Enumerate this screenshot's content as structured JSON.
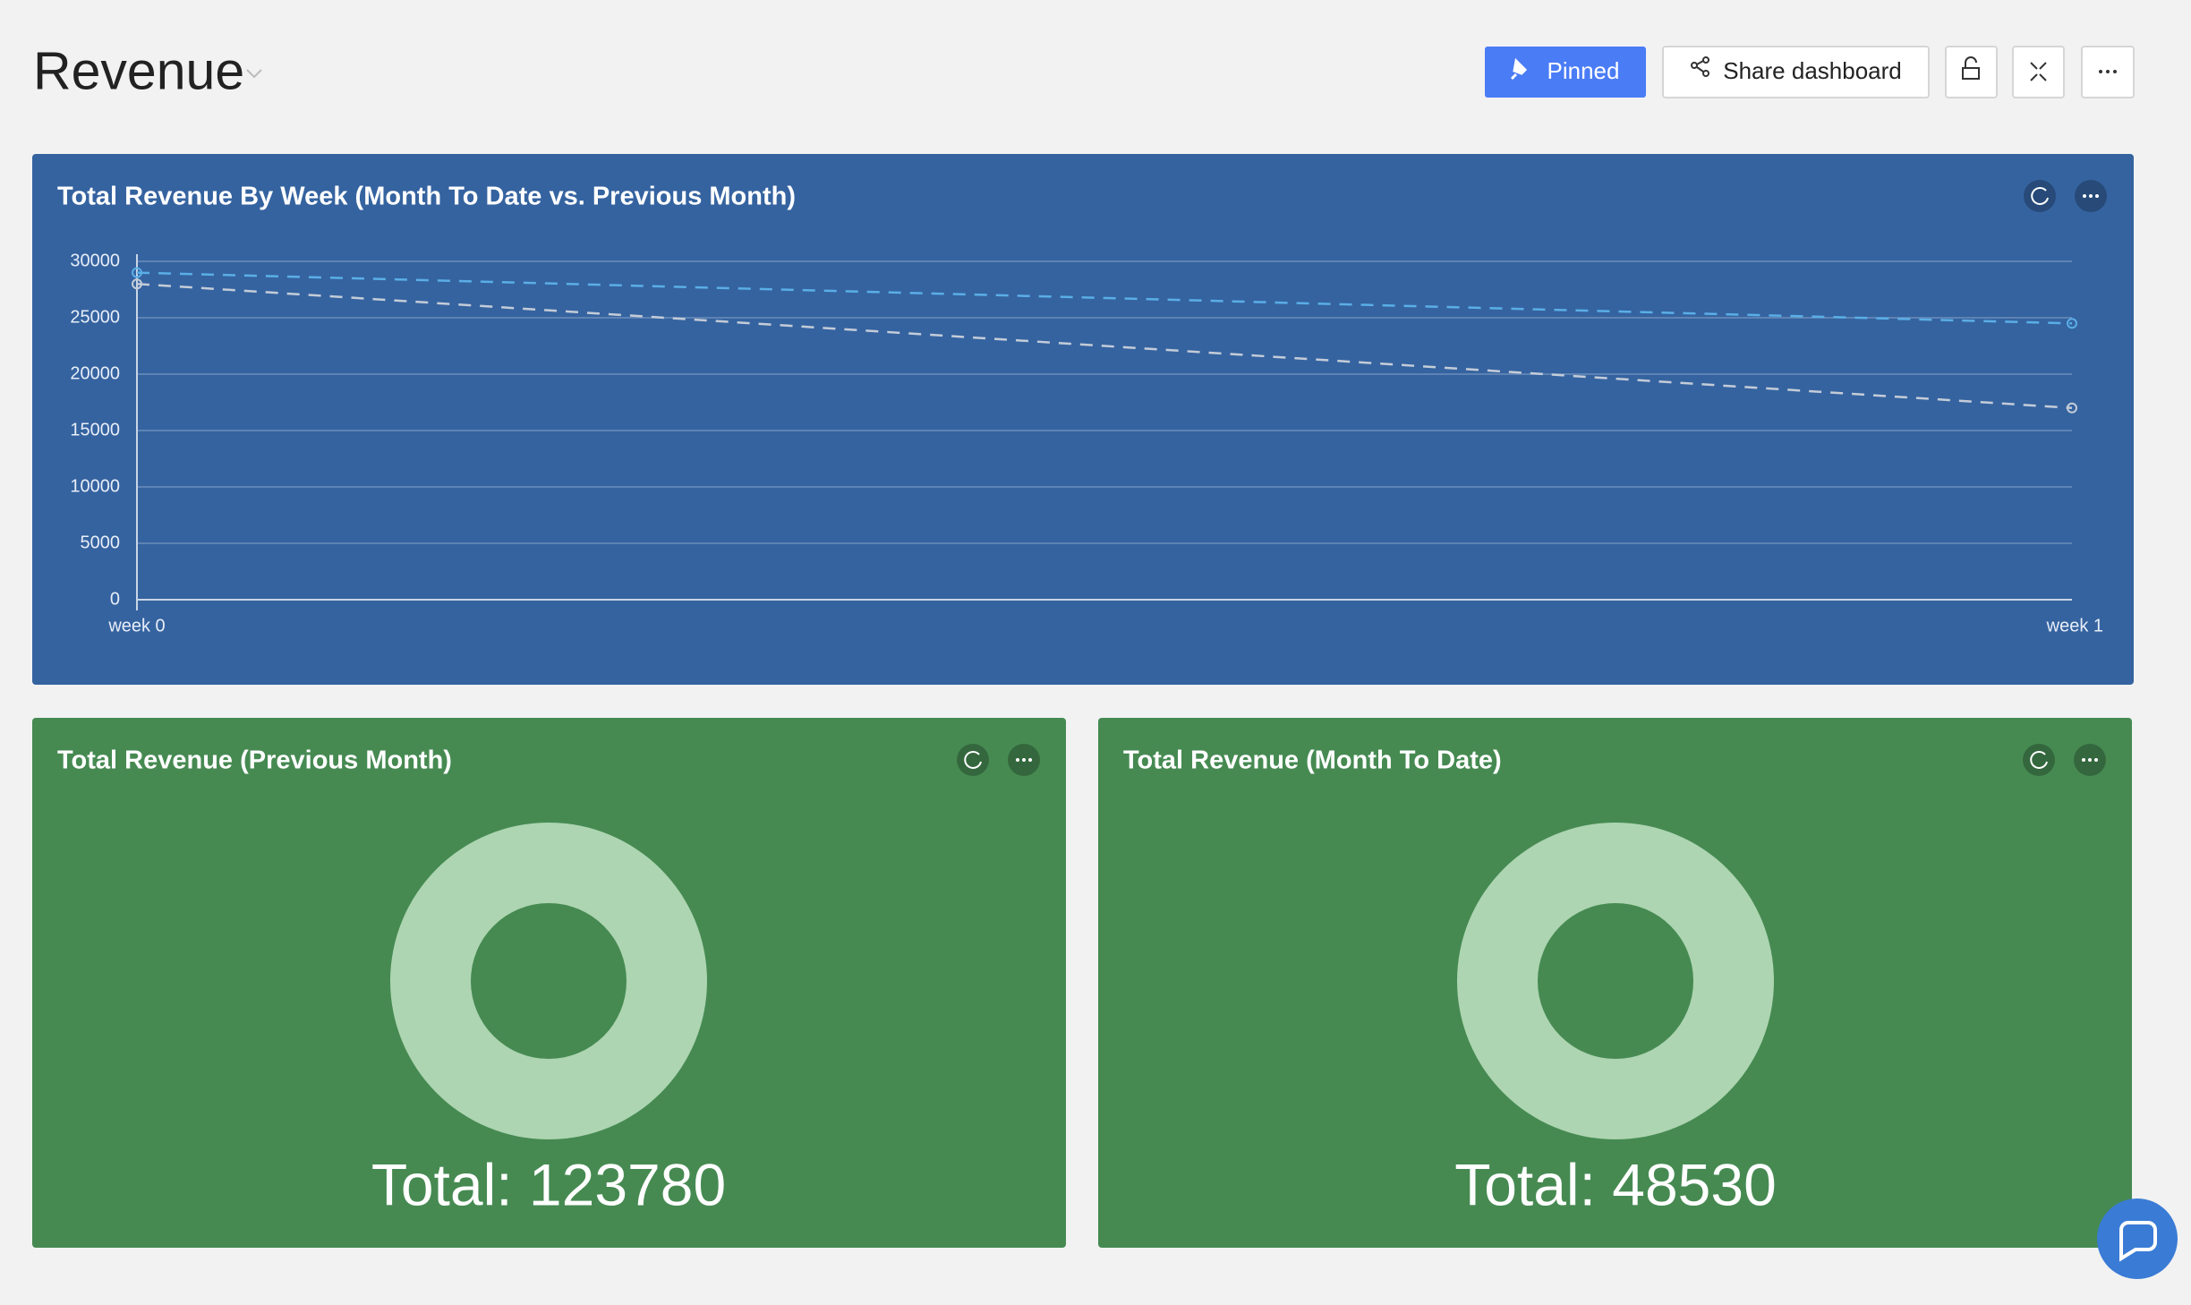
{
  "header": {
    "title": "Revenue",
    "buttons": [
      "Pinned",
      "Share dashboard"
    ]
  },
  "chart_data": [
    {
      "type": "line",
      "title": "Total Revenue By Week (Month To Date vs. Previous Month)",
      "categories": [
        "week 0",
        "week 1"
      ],
      "series": [
        {
          "color": "#5aaee6",
          "values": [
            29000,
            24500
          ]
        },
        {
          "color": "#c4ccd8",
          "values": [
            28000,
            17000
          ]
        }
      ],
      "ylim": [
        0,
        30000
      ],
      "yticks": [
        0,
        5000,
        10000,
        15000,
        20000,
        25000,
        30000
      ],
      "grid": true
    },
    {
      "type": "pie",
      "title": "Total Revenue (Previous Month)",
      "categories": [
        null
      ],
      "values": [
        123780
      ],
      "value_labels": [
        "Total: 123780"
      ],
      "color": "#add5b1"
    },
    {
      "type": "pie",
      "title": "Total Revenue (Month To Date)",
      "categories": [
        null
      ],
      "values": [
        48530
      ],
      "value_labels": [
        "Total: 48530"
      ],
      "color": "#add5b1"
    }
  ]
}
